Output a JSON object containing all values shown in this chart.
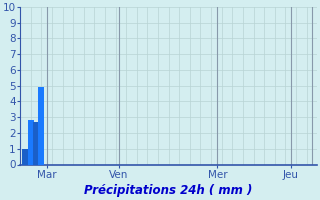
{
  "bar_values": [
    1.0,
    2.8,
    2.7,
    4.9
  ],
  "bar_colors": [
    "#1a5fc8",
    "#1a7aff",
    "#1a5fc8",
    "#1a7aff"
  ],
  "bar_width": 0.55,
  "bar_positions": [
    0.5,
    1.0,
    1.5,
    2.0
  ],
  "ylim": [
    0,
    10
  ],
  "yticks": [
    0,
    1,
    2,
    3,
    4,
    5,
    6,
    7,
    8,
    9,
    10
  ],
  "xlim": [
    0,
    28
  ],
  "xtick_positions": [
    2.5,
    9.3,
    18.6,
    25.5
  ],
  "xtick_labels": [
    "Mar",
    "Ven",
    "Mer",
    "Jeu"
  ],
  "xlabel": "Précipitations 24h ( mm )",
  "background_color": "#d4eef0",
  "grid_color": "#b8d4d4",
  "grid_color_vert_main": "#a8b8c8",
  "xlabel_color": "#0000cc",
  "ytick_color": "#3355aa",
  "xtick_color": "#3355aa",
  "xlabel_fontsize": 8.5,
  "ytick_fontsize": 7.5,
  "xtick_fontsize": 7.5,
  "n_cols": 28,
  "n_rows": 10,
  "main_vert_line_positions": [
    2.5,
    9.3,
    18.6,
    25.5,
    27.5
  ],
  "main_vert_line_color": "#8899aa"
}
